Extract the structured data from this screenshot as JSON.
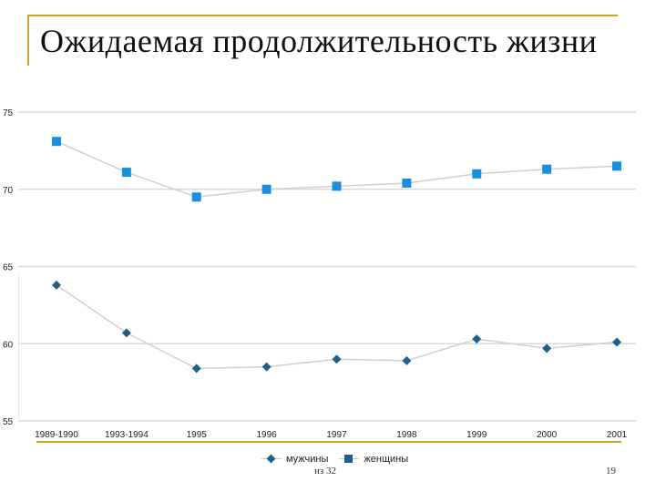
{
  "slide": {
    "title": "Ожидаемая продолжительность жизни"
  },
  "footer": {
    "left": "из 32",
    "right": "19"
  },
  "colors": {
    "accent_gold": "#c8a52a",
    "women_marker": "#1a8fde",
    "men_marker": "#1f5f8b",
    "connector_line": "#d0d0d0",
    "gridline": "#d9d9d9"
  },
  "chart_data": {
    "type": "line",
    "categories": [
      "1989-1990",
      "1993-1994",
      "1995",
      "1996",
      "1997",
      "1998",
      "1999",
      "2000",
      "2001"
    ],
    "series": [
      {
        "name": "женщины",
        "marker": "square",
        "values": [
          73.1,
          71.1,
          69.5,
          70.0,
          70.2,
          70.4,
          71.0,
          71.3,
          71.5
        ]
      },
      {
        "name": "мужчины",
        "marker": "diamond",
        "values": [
          63.8,
          60.7,
          58.4,
          58.5,
          59.0,
          58.9,
          60.3,
          59.7,
          60.1
        ]
      }
    ],
    "ylim": [
      55,
      75
    ],
    "yticks": [
      "75",
      "70",
      "65",
      "60",
      "55"
    ],
    "grid": true,
    "legend": {
      "position": "bottom",
      "order": [
        "мужчины",
        "женщины"
      ]
    }
  }
}
